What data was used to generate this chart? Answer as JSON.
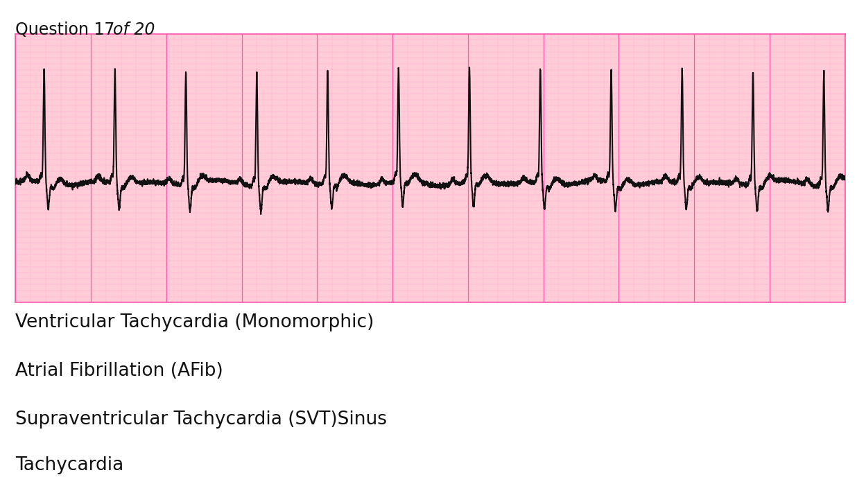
{
  "bg_color": "#ffffff",
  "ecg_bg_color": "#ffccd8",
  "ecg_grid_minor_color": "#ffaacc",
  "ecg_grid_major_color": "#ff55aa",
  "ecg_line_color": "#111111",
  "answer_options": [
    "Ventricular Tachycardia (Monomorphic)",
    "Atrial Fibrillation (AFib)",
    "Supraventricular Tachycardia (SVT)Sinus",
    "Tachycardia"
  ],
  "answer_font_size": 19,
  "question_text_normal": "Question 17 ",
  "question_text_italic": "of 20",
  "question_font_size": 17
}
